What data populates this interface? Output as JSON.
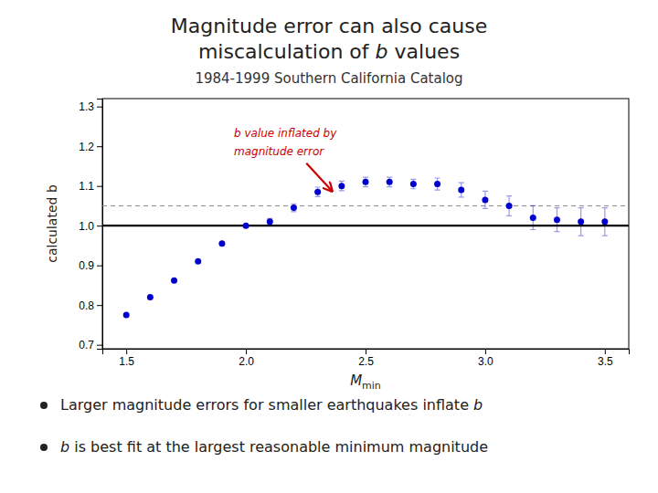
{
  "chart_data": {
    "type": "scatter",
    "title": "Magnitude error can also cause",
    "title_line2_pre": "miscalculation of ",
    "title_b": "b",
    "title_line2_post": " values",
    "subtitle": "1984-1999 Southern California Catalog",
    "y_label": "calculated b",
    "x_label": "M",
    "x_label_subscript": "min",
    "xlim": [
      1.4,
      3.6
    ],
    "ylim": [
      0.69,
      1.32
    ],
    "xticks": [
      1.5,
      {
        "value": 2,
        "label": "2.0"
      },
      2.5,
      {
        "value": 3,
        "label": "3.0"
      },
      3.5
    ],
    "yticks": [
      0.7,
      0.8,
      0.9,
      {
        "value": 1,
        "label": "1.0"
      },
      1.1,
      1.2,
      1.3
    ],
    "grid": false,
    "color": "#0000CC",
    "x": [
      1.5,
      1.6,
      1.7,
      1.8,
      1.9,
      2.0,
      2.1,
      2.2,
      2.3,
      2.4,
      2.5,
      2.6,
      2.7,
      2.8,
      2.9,
      3.0,
      3.1,
      3.2,
      3.3,
      3.4,
      3.5
    ],
    "values": [
      0.775,
      0.82,
      0.862,
      0.91,
      0.955,
      1.0,
      1.01,
      1.045,
      1.085,
      1.1,
      1.11,
      1.11,
      1.105,
      1.105,
      1.09,
      1.065,
      1.05,
      1.02,
      1.015,
      1.01,
      1.01
    ],
    "errors": [
      0.0,
      0.0,
      0.0,
      0.0,
      0.0,
      0.0,
      0.008,
      0.01,
      0.012,
      0.012,
      0.012,
      0.012,
      0.012,
      0.015,
      0.018,
      0.022,
      0.025,
      0.03,
      0.03,
      0.035,
      0.035
    ],
    "hlines": [
      {
        "y": 1.0,
        "line_style": "solid"
      },
      {
        "y": 1.05,
        "line_style": "dashed"
      }
    ],
    "annotations": [
      {
        "text": [
          "b value inflated by",
          "magnitude error"
        ],
        "x": 1.95,
        "y": 1.21,
        "arrow_x": 2.36,
        "arrow_y": 1.087,
        "color": "#CC0000"
      }
    ],
    "bullet1_pre": "Larger magnitude errors for smaller earthquakes inflate ",
    "bullet1_b": "b",
    "bullet2_b": "b",
    "bullet2_post": " is best fit at the largest reasonable minimum magnitude"
  }
}
